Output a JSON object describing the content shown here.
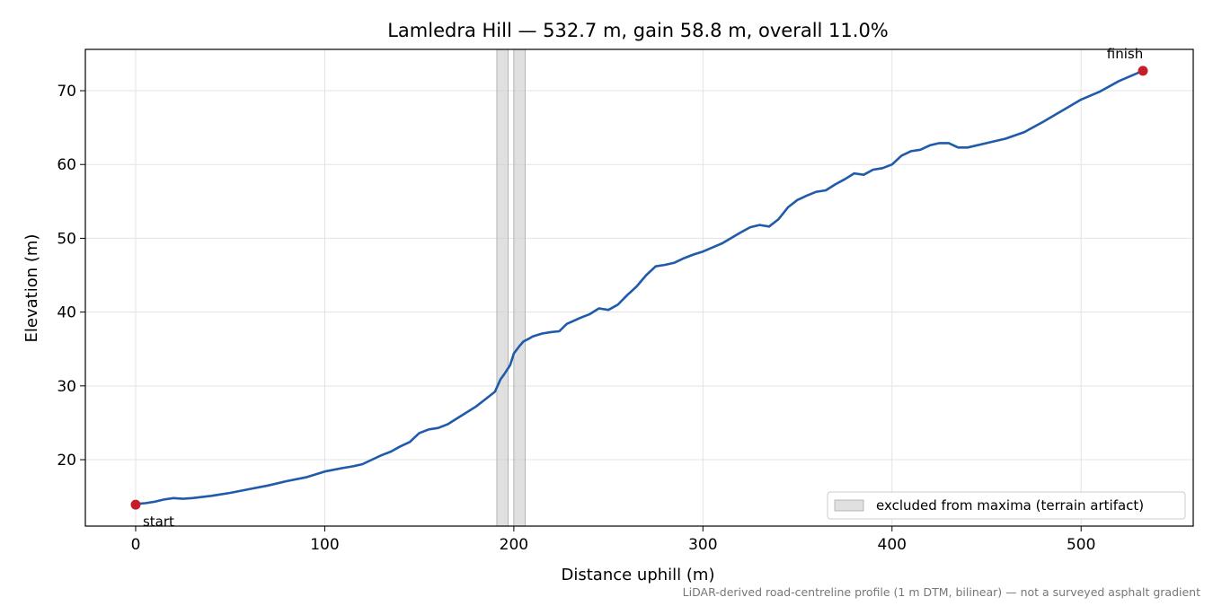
{
  "chart_data": {
    "type": "line",
    "title": "Lamledra Hill — 532.7 m, gain 58.8 m, overall 11.0%",
    "xlabel": "Distance uphill (m)",
    "ylabel": "Elevation (m)",
    "xlim": [
      -26.6,
      559.3
    ],
    "ylim": [
      11.0,
      75.6
    ],
    "xticks": [
      0,
      100,
      200,
      300,
      400,
      500
    ],
    "yticks": [
      20,
      30,
      40,
      50,
      60,
      70
    ],
    "grid": true,
    "line_color": "#1f5aab",
    "marker_color": "#c41e2a",
    "series": [
      {
        "x": [
          0,
          5,
          10,
          15,
          20,
          25,
          30,
          40,
          50,
          60,
          70,
          80,
          90,
          100,
          110,
          115,
          120,
          125,
          130,
          135,
          140,
          145,
          150,
          155,
          160,
          165,
          170,
          175,
          180,
          185,
          190,
          193,
          195,
          198,
          200,
          203,
          205,
          208,
          210,
          215,
          220,
          224,
          228,
          235,
          240,
          245,
          250,
          255,
          260,
          265,
          270,
          275,
          280,
          285,
          290,
          295,
          300,
          310,
          320,
          325,
          330,
          335,
          340,
          345,
          350,
          355,
          360,
          365,
          370,
          375,
          380,
          385,
          390,
          395,
          400,
          405,
          410,
          415,
          420,
          425,
          430,
          435,
          440,
          450,
          460,
          470,
          480,
          490,
          500,
          510,
          520,
          532.7
        ],
        "y": [
          14.0,
          14.1,
          14.3,
          14.6,
          14.8,
          14.7,
          14.8,
          15.1,
          15.5,
          16.0,
          16.5,
          17.1,
          17.6,
          18.4,
          18.9,
          19.1,
          19.4,
          20.0,
          20.6,
          21.1,
          21.8,
          22.4,
          23.6,
          24.1,
          24.3,
          24.8,
          25.6,
          26.4,
          27.2,
          28.2,
          29.2,
          30.9,
          31.6,
          32.8,
          34.4,
          35.4,
          36.0,
          36.4,
          36.7,
          37.1,
          37.3,
          37.4,
          38.4,
          39.2,
          39.7,
          40.5,
          40.3,
          41.0,
          42.3,
          43.5,
          45.0,
          46.2,
          46.4,
          46.7,
          47.3,
          47.8,
          48.2,
          49.3,
          50.8,
          51.5,
          51.8,
          51.6,
          52.6,
          54.2,
          55.2,
          55.8,
          56.3,
          56.5,
          57.3,
          58.0,
          58.8,
          58.6,
          59.3,
          59.5,
          60.0,
          61.2,
          61.8,
          62.0,
          62.6,
          62.9,
          62.9,
          62.3,
          62.3,
          62.9,
          63.5,
          64.4,
          65.8,
          67.3,
          68.8,
          69.9,
          71.3,
          72.7
        ]
      }
    ],
    "excluded_bands": [
      [
        191,
        197
      ],
      [
        200,
        206
      ]
    ],
    "annotations": [
      {
        "text": "start",
        "x": 0,
        "y": 13.9
      },
      {
        "text": "finish",
        "x": 532.7,
        "y": 72.7
      }
    ],
    "legend": {
      "label": "excluded from maxima (terrain artifact)",
      "placement": "lower-right"
    }
  },
  "footnote": "LiDAR-derived road-centreline profile (1 m DTM, bilinear) — not a surveyed asphalt gradient"
}
